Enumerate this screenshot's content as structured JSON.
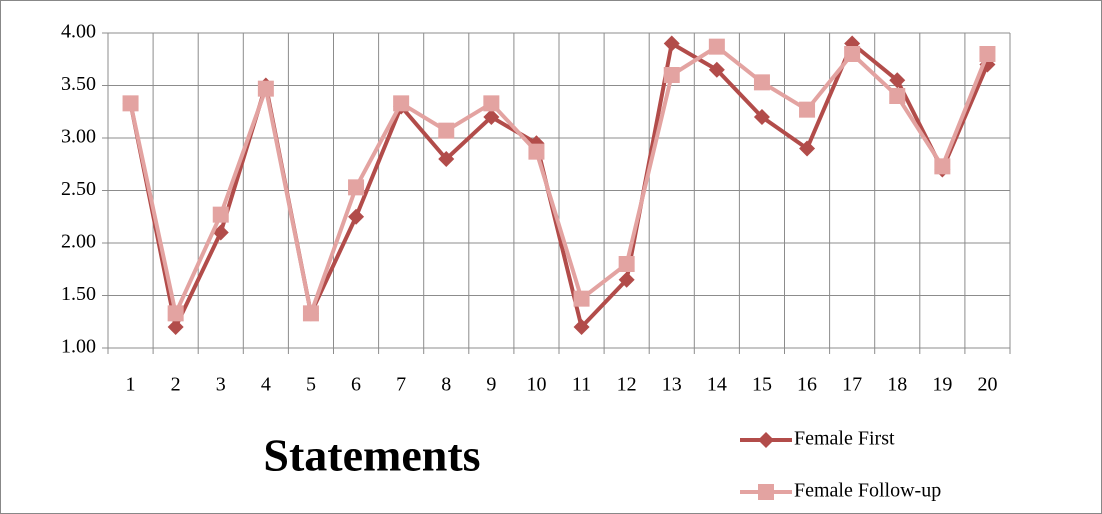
{
  "chart_data": {
    "type": "line",
    "xlabel": "Statements",
    "categories": [
      "1",
      "2",
      "3",
      "4",
      "5",
      "6",
      "7",
      "8",
      "9",
      "10",
      "11",
      "12",
      "13",
      "14",
      "15",
      "16",
      "17",
      "18",
      "19",
      "20"
    ],
    "series": [
      {
        "name": "Female First",
        "color": "#b24c4a",
        "marker": "diamond",
        "values": [
          3.33,
          1.2,
          2.1,
          3.5,
          1.33,
          2.25,
          3.3,
          2.8,
          3.2,
          2.95,
          1.2,
          1.65,
          3.9,
          3.65,
          3.2,
          2.9,
          3.9,
          3.55,
          2.7,
          3.7
        ]
      },
      {
        "name": "Female Follow-up",
        "color": "#e3a3a1",
        "marker": "square",
        "values": [
          3.33,
          1.33,
          2.27,
          3.47,
          1.33,
          2.53,
          3.33,
          3.07,
          3.33,
          2.87,
          1.47,
          1.8,
          3.6,
          3.87,
          3.53,
          3.27,
          3.8,
          3.4,
          2.73,
          3.8
        ]
      }
    ],
    "ylim": [
      1,
      4
    ],
    "yticks": [
      {
        "value": 1,
        "label": "1.00"
      },
      {
        "value": 1.5,
        "label": "1.50"
      },
      {
        "value": 2,
        "label": "2.00"
      },
      {
        "value": 2.5,
        "label": "2.50"
      },
      {
        "value": 3,
        "label": "3.00"
      },
      {
        "value": 3.5,
        "label": "3.50"
      },
      {
        "value": 4,
        "label": "4.00"
      }
    ],
    "grid": true
  }
}
